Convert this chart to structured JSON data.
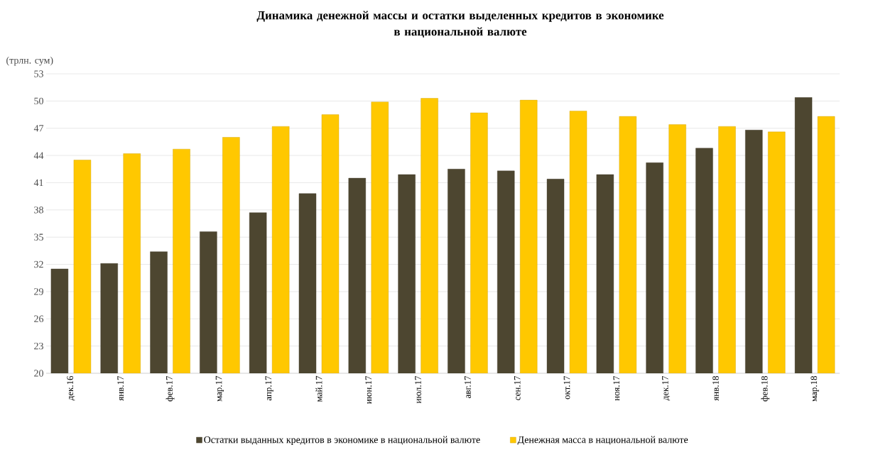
{
  "chart_data": {
    "type": "bar",
    "title": "Динамика денежной массы и остатки выделенных кредитов в экономике\nв национальной валюте",
    "ylabel": "(трлн. сум)",
    "categories": [
      "дек.16",
      "янв.17",
      "фев.17",
      "мар.17",
      "апр.17",
      "май.17",
      "июн.17",
      "июл.17",
      "авг.17",
      "сен.17",
      "окт.17",
      "ноя.17",
      "дек.17",
      "янв.18",
      "фев.18",
      "мар.18"
    ],
    "series": [
      {
        "name": "Остатки выданных кредитов в экономике в национальной валюте",
        "color": "#4d4630",
        "values": [
          31.5,
          32.1,
          33.4,
          35.6,
          37.7,
          39.8,
          41.5,
          41.9,
          42.5,
          42.3,
          41.4,
          41.9,
          43.2,
          44.8,
          46.8,
          50.4
        ]
      },
      {
        "name": "Денежная масса в национальной валюте",
        "color": "#ffc800",
        "values": [
          43.5,
          44.2,
          44.7,
          46.0,
          47.2,
          48.5,
          49.9,
          50.3,
          48.7,
          50.1,
          48.9,
          48.3,
          47.4,
          47.2,
          46.6,
          48.3
        ]
      }
    ],
    "ylim": [
      20,
      53
    ],
    "yticks": [
      20,
      23,
      26,
      29,
      32,
      35,
      38,
      41,
      44,
      47,
      50,
      53
    ],
    "grid": "y",
    "legend": "bottom"
  }
}
